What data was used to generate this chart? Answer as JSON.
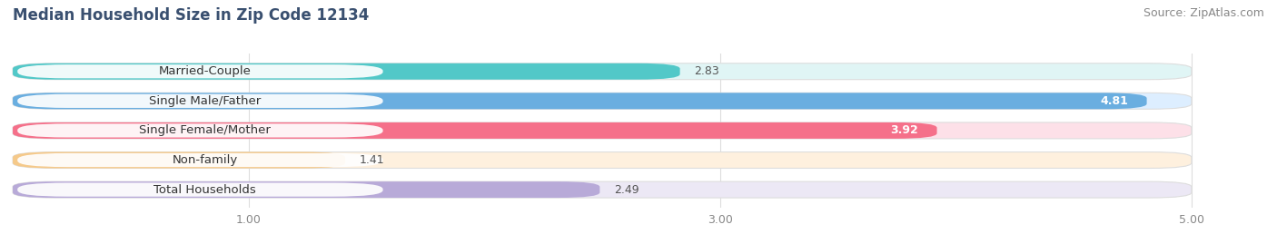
{
  "title": "Median Household Size in Zip Code 12134",
  "source": "Source: ZipAtlas.com",
  "categories": [
    "Married-Couple",
    "Single Male/Father",
    "Single Female/Mother",
    "Non-family",
    "Total Households"
  ],
  "values": [
    2.83,
    4.81,
    3.92,
    1.41,
    2.49
  ],
  "bar_colors": [
    "#52c8c8",
    "#6aaee0",
    "#f5708a",
    "#f5c98a",
    "#b8aad8"
  ],
  "bar_bg_colors": [
    "#e0f5f5",
    "#ddeeff",
    "#fde0e8",
    "#fef0de",
    "#ece8f5"
  ],
  "value_colors": [
    "#444444",
    "#ffffff",
    "#ffffff",
    "#444444",
    "#444444"
  ],
  "xlim_min": 0,
  "xlim_max": 5.2,
  "xaxis_max": 5.0,
  "xticks": [
    1.0,
    3.0,
    5.0
  ],
  "xticklabels": [
    "1.00",
    "3.00",
    "5.00"
  ],
  "background_color": "#ffffff",
  "plot_bg_color": "#f7f7f7",
  "title_fontsize": 12,
  "source_fontsize": 9,
  "label_fontsize": 9.5,
  "value_fontsize": 9,
  "tick_fontsize": 9,
  "bar_height": 0.55,
  "title_color": "#3a5070",
  "source_color": "#888888",
  "tick_color": "#888888",
  "grid_color": "#dddddd"
}
